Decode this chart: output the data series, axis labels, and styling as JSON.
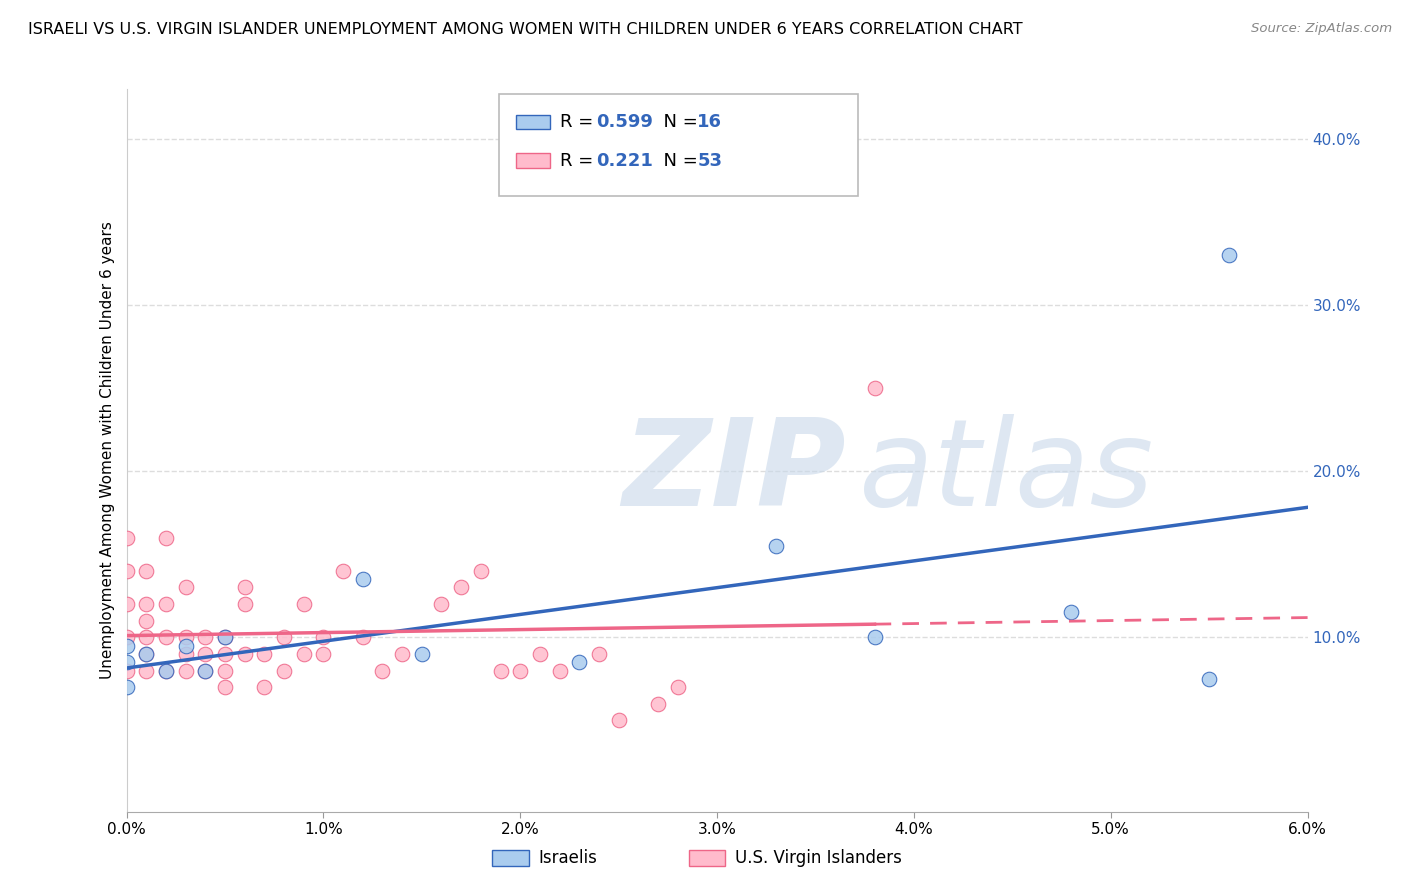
{
  "title": "ISRAELI VS U.S. VIRGIN ISLANDER UNEMPLOYMENT AMONG WOMEN WITH CHILDREN UNDER 6 YEARS CORRELATION CHART",
  "source": "Source: ZipAtlas.com",
  "ylabel": "Unemployment Among Women with Children Under 6 years",
  "xlim": [
    0.0,
    0.06
  ],
  "ylim": [
    -0.005,
    0.43
  ],
  "xticks": [
    0.0,
    0.01,
    0.02,
    0.03,
    0.04,
    0.05,
    0.06
  ],
  "xticklabels": [
    "0.0%",
    "1.0%",
    "2.0%",
    "3.0%",
    "4.0%",
    "5.0%",
    "6.0%"
  ],
  "yticks_right": [
    0.1,
    0.2,
    0.3,
    0.4
  ],
  "yticks_right_labels": [
    "10.0%",
    "20.0%",
    "30.0%",
    "40.0%"
  ],
  "grid_color": "#dddddd",
  "background_color": "#ffffff",
  "watermark": "ZIPatlas",
  "watermark_color": "#c8d8ea",
  "legend_R1": "0.599",
  "legend_N1": "16",
  "legend_R2": "0.221",
  "legend_N2": "53",
  "series1_color": "#aaccee",
  "series2_color": "#ffbbcc",
  "trend1_color": "#3366bb",
  "trend2_color": "#ee6688",
  "israelis_x": [
    0.0,
    0.0,
    0.0,
    0.001,
    0.002,
    0.003,
    0.004,
    0.005,
    0.012,
    0.015,
    0.023,
    0.033,
    0.038,
    0.048,
    0.055,
    0.056
  ],
  "israelis_y": [
    0.07,
    0.085,
    0.095,
    0.09,
    0.08,
    0.095,
    0.08,
    0.1,
    0.135,
    0.09,
    0.085,
    0.155,
    0.1,
    0.115,
    0.075,
    0.33
  ],
  "vi_x": [
    0.0,
    0.0,
    0.0,
    0.0,
    0.0,
    0.001,
    0.001,
    0.001,
    0.001,
    0.001,
    0.001,
    0.002,
    0.002,
    0.002,
    0.002,
    0.003,
    0.003,
    0.003,
    0.003,
    0.004,
    0.004,
    0.004,
    0.005,
    0.005,
    0.005,
    0.005,
    0.006,
    0.006,
    0.006,
    0.007,
    0.007,
    0.008,
    0.008,
    0.009,
    0.009,
    0.01,
    0.01,
    0.011,
    0.012,
    0.013,
    0.014,
    0.016,
    0.017,
    0.018,
    0.019,
    0.02,
    0.021,
    0.022,
    0.024,
    0.025,
    0.027,
    0.028,
    0.038
  ],
  "vi_y": [
    0.08,
    0.1,
    0.12,
    0.14,
    0.16,
    0.08,
    0.09,
    0.1,
    0.11,
    0.12,
    0.14,
    0.08,
    0.1,
    0.12,
    0.16,
    0.08,
    0.09,
    0.1,
    0.13,
    0.08,
    0.09,
    0.1,
    0.07,
    0.08,
    0.09,
    0.1,
    0.09,
    0.12,
    0.13,
    0.07,
    0.09,
    0.08,
    0.1,
    0.09,
    0.12,
    0.09,
    0.1,
    0.14,
    0.1,
    0.08,
    0.09,
    0.12,
    0.13,
    0.14,
    0.08,
    0.08,
    0.09,
    0.08,
    0.09,
    0.05,
    0.06,
    0.07,
    0.25
  ],
  "title_fontsize": 11.5,
  "label_fontsize": 11,
  "tick_fontsize": 11,
  "legend_fontsize": 13
}
